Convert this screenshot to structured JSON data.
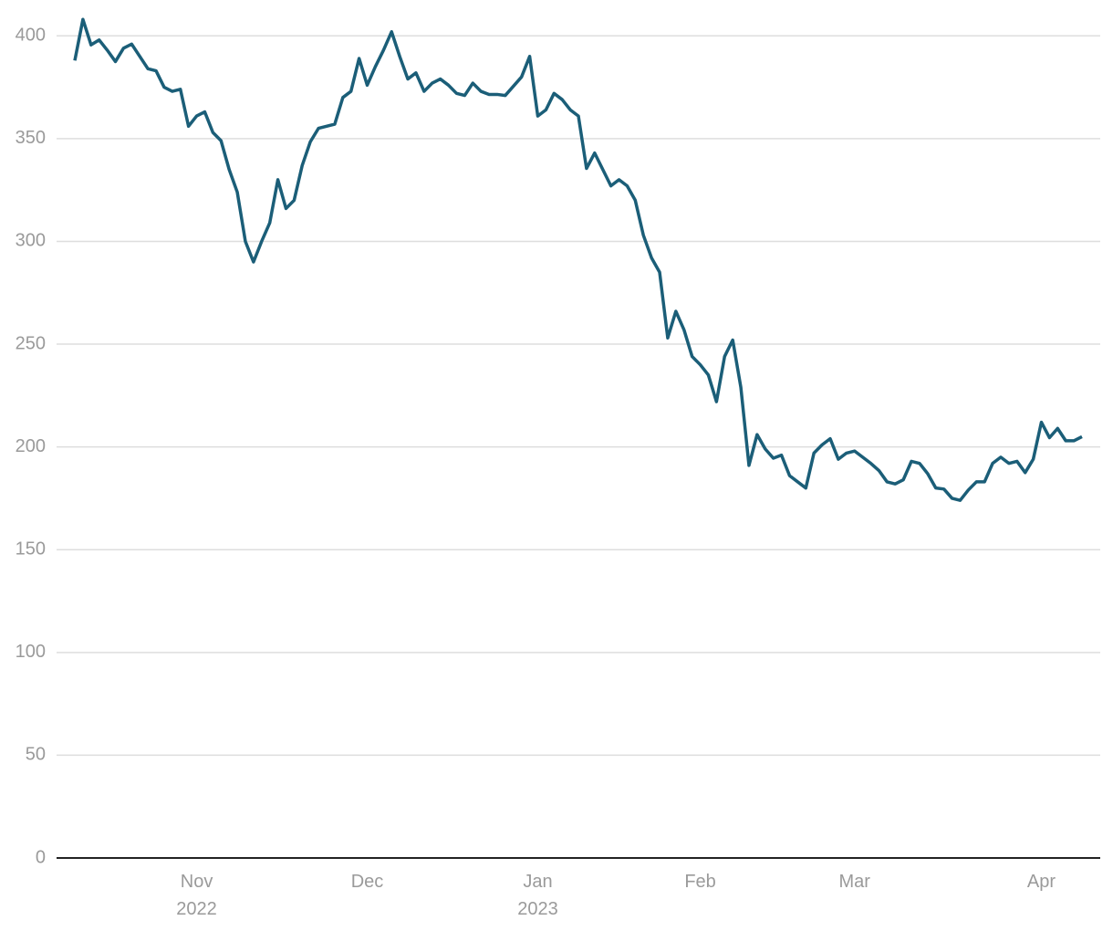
{
  "chart_data": {
    "type": "line",
    "categories": [
      null,
      null,
      null,
      null,
      null,
      null,
      null,
      null,
      null,
      null,
      null,
      null,
      null,
      null,
      null,
      "Nov\n2022",
      null,
      null,
      null,
      null,
      null,
      null,
      null,
      null,
      null,
      null,
      null,
      null,
      null,
      null,
      null,
      null,
      null,
      null,
      null,
      null,
      "Dec",
      null,
      null,
      null,
      null,
      null,
      null,
      null,
      null,
      null,
      null,
      null,
      null,
      null,
      null,
      null,
      null,
      null,
      null,
      null,
      null,
      "Jan\n2023",
      null,
      null,
      null,
      null,
      null,
      null,
      null,
      null,
      null,
      null,
      null,
      null,
      null,
      null,
      null,
      null,
      null,
      null,
      null,
      "Feb",
      null,
      null,
      null,
      null,
      null,
      null,
      null,
      null,
      null,
      null,
      null,
      null,
      null,
      null,
      null,
      null,
      null,
      null,
      "Mar",
      null,
      null,
      null,
      null,
      null,
      null,
      null,
      null,
      null,
      null,
      null,
      null,
      null,
      null,
      null,
      null,
      null,
      null,
      null,
      null,
      null,
      null,
      "Apr",
      null,
      null,
      null,
      null,
      null
    ],
    "values": [
      388,
      408,
      395.6,
      398,
      393,
      387.5,
      394,
      396,
      390,
      384,
      383,
      375,
      373,
      374,
      356,
      361,
      363,
      353,
      349,
      335,
      324,
      300,
      290,
      300,
      309,
      330,
      316,
      320,
      337,
      348.5,
      355,
      356,
      357,
      370,
      373,
      389,
      376,
      385,
      393,
      402,
      390,
      379,
      382,
      373,
      377,
      379,
      376,
      372,
      371,
      377,
      373,
      371.5,
      371.5,
      371,
      375.5,
      380,
      390,
      361,
      364,
      372,
      369,
      364,
      361,
      335.5,
      343,
      335,
      327,
      330,
      327,
      320,
      303,
      292,
      285,
      253,
      266,
      257,
      244,
      240,
      235,
      222,
      244,
      252,
      229,
      191,
      206,
      199,
      194.5,
      196,
      186,
      183,
      180,
      197,
      201,
      204,
      194,
      197,
      198,
      195,
      192,
      188.5,
      183,
      182,
      184,
      193,
      192,
      187,
      180,
      179.5,
      175,
      174,
      179,
      183,
      183,
      192,
      195,
      192,
      193,
      187.5,
      194,
      212,
      204.5,
      209,
      203,
      203,
      205
    ],
    "color": "#1b5e78",
    "ylim": [
      0,
      413
    ],
    "yticks": [
      0,
      50,
      100,
      150,
      200,
      250,
      300,
      350,
      400
    ],
    "grid": true
  }
}
